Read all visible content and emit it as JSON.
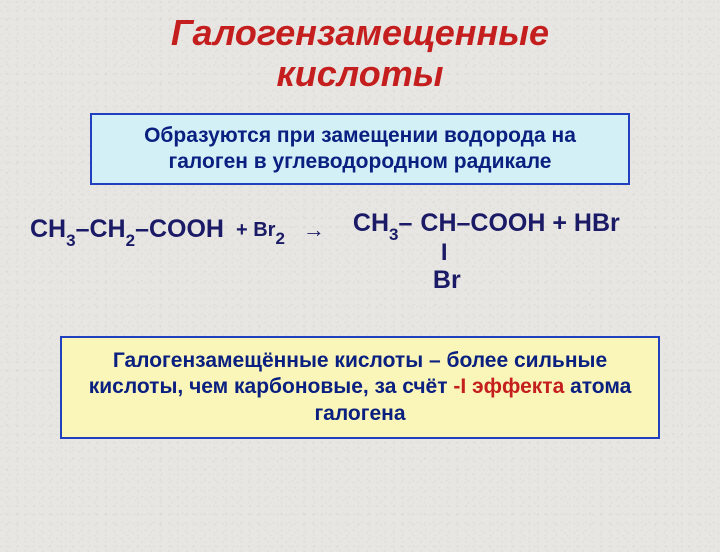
{
  "title": {
    "line1": "Галогензамещенные",
    "line2": "кислоты",
    "color": "#c41e1e",
    "fontsize": 36
  },
  "box1": {
    "text": "Образуются при замещении водорода на галоген в углеводородном радикале",
    "bg_color": "#d4f0f7",
    "border_color": "#2040c0",
    "text_color": "#0a2080",
    "fontsize": 21
  },
  "reaction": {
    "reactant": {
      "ch3": "CH",
      "sub3": "3",
      "dash1": "–",
      "ch2": "CH",
      "sub2": "2",
      "dash2": "–",
      "cooh": "COOH"
    },
    "reagent": {
      "plus": "+ Br",
      "sub2": "2"
    },
    "arrow": "→",
    "product": {
      "ch3": "CH",
      "sub3": "3",
      "dash1": "–",
      "ch_cooh": "CH–COOH + HBr",
      "branch_bar": "I",
      "branch_br": "Br"
    },
    "text_color": "#1a1a66",
    "fontsize": 25
  },
  "box2": {
    "text_part1": "Галогензамещённые кислоты – более сильные кислоты, чем карбоновые, за счёт ",
    "text_highlight": "-I эффекта",
    "text_part2": " атома галогена",
    "bg_color": "#faf5b8",
    "border_color": "#2040c0",
    "text_color": "#0a2080",
    "highlight_color": "#c41e1e",
    "fontsize": 21
  },
  "background_color": "#e8e6e2"
}
